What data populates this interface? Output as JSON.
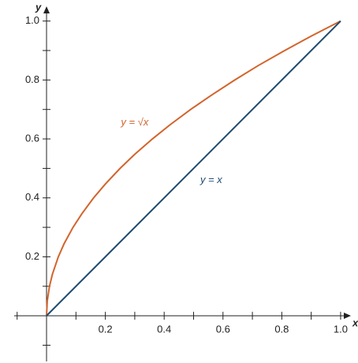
{
  "chart_data": {
    "type": "line",
    "x_label": "x",
    "y_label": "y",
    "xlim": [
      -0.11,
      1.035
    ],
    "ylim": [
      -0.155,
      1.05
    ],
    "xticks": [
      0.2,
      0.4,
      0.6,
      0.8,
      {
        "value": 1,
        "label": "1.0"
      }
    ],
    "yticks": [
      0.2,
      0.4,
      0.6,
      0.8,
      {
        "value": 1,
        "label": "1.0"
      }
    ],
    "xminorticks": [
      -0.1,
      0.1,
      0.3,
      0.5,
      0.7,
      0.9
    ],
    "yminorticks": [
      -0.1,
      0.1,
      0.3,
      0.5,
      0.7,
      0.9
    ],
    "series": [
      {
        "name": "y = √x",
        "color": "#d2642c",
        "x": [
          0,
          0.0025,
          0.01,
          0.02,
          0.04,
          0.06,
          0.09,
          0.12,
          0.16,
          0.2,
          0.25,
          0.3,
          0.36,
          0.42,
          0.49,
          0.56,
          0.64,
          0.72,
          0.81,
          0.9,
          1
        ],
        "values": [
          0,
          0.05,
          0.1,
          0.141,
          0.2,
          0.245,
          0.3,
          0.346,
          0.4,
          0.447,
          0.5,
          0.548,
          0.6,
          0.648,
          0.7,
          0.748,
          0.8,
          0.849,
          0.9,
          0.949,
          1
        ],
        "label_x": 0.3,
        "label_y": 0.655
      },
      {
        "name": "y = x",
        "color": "#1f4a6e",
        "x": [
          0,
          1
        ],
        "values": [
          0,
          1
        ],
        "label_x": 0.56,
        "label_y": 0.46
      }
    ]
  }
}
